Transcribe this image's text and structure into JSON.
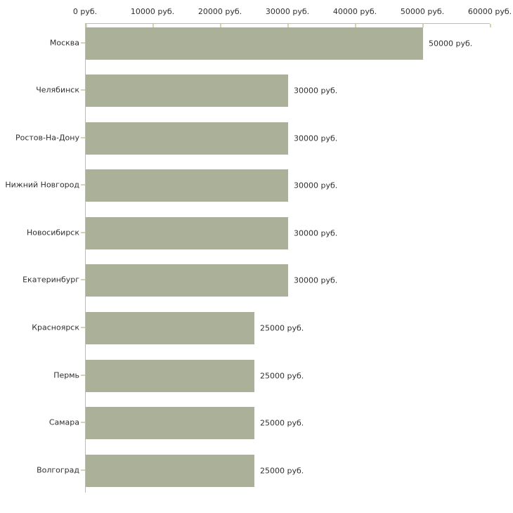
{
  "chart_data": {
    "type": "bar",
    "orientation": "horizontal",
    "title": "",
    "xlabel": "",
    "ylabel": "",
    "unit": "руб.",
    "xlim": [
      0,
      60000
    ],
    "grid": false,
    "legend": "none",
    "categories": [
      "Москва",
      "Челябинск",
      "Ростов-На-Дону",
      "Нижний Новгород",
      "Новосибирск",
      "Екатеринбург",
      "Красноярск",
      "Пермь",
      "Самара",
      "Волгоград"
    ],
    "values": [
      50000,
      30000,
      30000,
      30000,
      30000,
      30000,
      25000,
      25000,
      25000,
      25000
    ],
    "value_labels": [
      "50000 руб.",
      "30000 руб.",
      "30000 руб.",
      "30000 руб.",
      "30000 руб.",
      "30000 руб.",
      "25000 руб.",
      "25000 руб.",
      "25000 руб.",
      "25000 руб."
    ],
    "x_ticks": [
      0,
      10000,
      20000,
      30000,
      40000,
      50000,
      60000
    ],
    "x_tick_labels": [
      "0 руб.",
      "10000 руб.",
      "20000 руб.",
      "30000 руб.",
      "40000 руб.",
      "50000 руб.",
      "60000 руб."
    ]
  },
  "colors": {
    "bar_fill": "#abb198",
    "axis_line": "#bbbbbb",
    "tick_mark": "#d6d3ae",
    "text": "#2f2f2f",
    "background": "#ffffff"
  }
}
